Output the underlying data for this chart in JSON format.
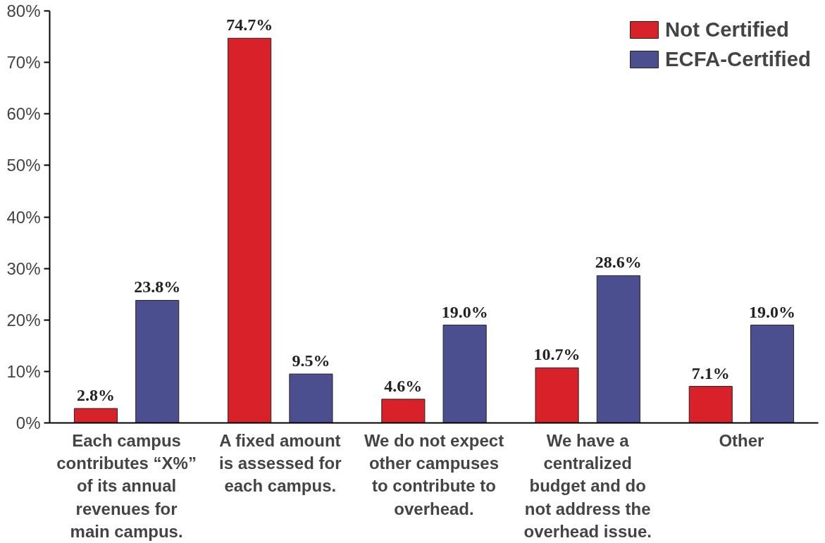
{
  "chart_data": {
    "type": "bar",
    "categories": [
      "Each campus contributes “X%” of its annual revenues for main campus.",
      "A fixed amount is assessed for each campus.",
      "We do not expect other campuses to contribute to overhead.",
      "We have a centralized budget and do not address the overhead issue.",
      "Other"
    ],
    "series": [
      {
        "name": "Not Certified",
        "color": "#d92129",
        "values": [
          2.8,
          74.7,
          4.6,
          10.7,
          7.1
        ]
      },
      {
        "name": "ECFA-Certified",
        "color": "#4c4f8f",
        "values": [
          23.8,
          9.5,
          19.0,
          28.6,
          19.0
        ]
      }
    ],
    "value_labels": [
      [
        "2.8%",
        "74.7%",
        "4.6%",
        "10.7%",
        "7.1%"
      ],
      [
        "23.8%",
        "9.5%",
        "19.0%",
        "28.6%",
        "19.0%"
      ]
    ],
    "ylim": [
      0,
      80
    ],
    "yticks": [
      {
        "value": 0,
        "label": "0%"
      },
      {
        "value": 10,
        "label": "10%"
      },
      {
        "value": 20,
        "label": "20%"
      },
      {
        "value": 30,
        "label": "30%"
      },
      {
        "value": 40,
        "label": "40%"
      },
      {
        "value": 50,
        "label": "50%"
      },
      {
        "value": 60,
        "label": "60%"
      },
      {
        "value": 70,
        "label": "70%"
      },
      {
        "value": 80,
        "label": "80%"
      }
    ],
    "grid": false,
    "legend": "top right"
  }
}
